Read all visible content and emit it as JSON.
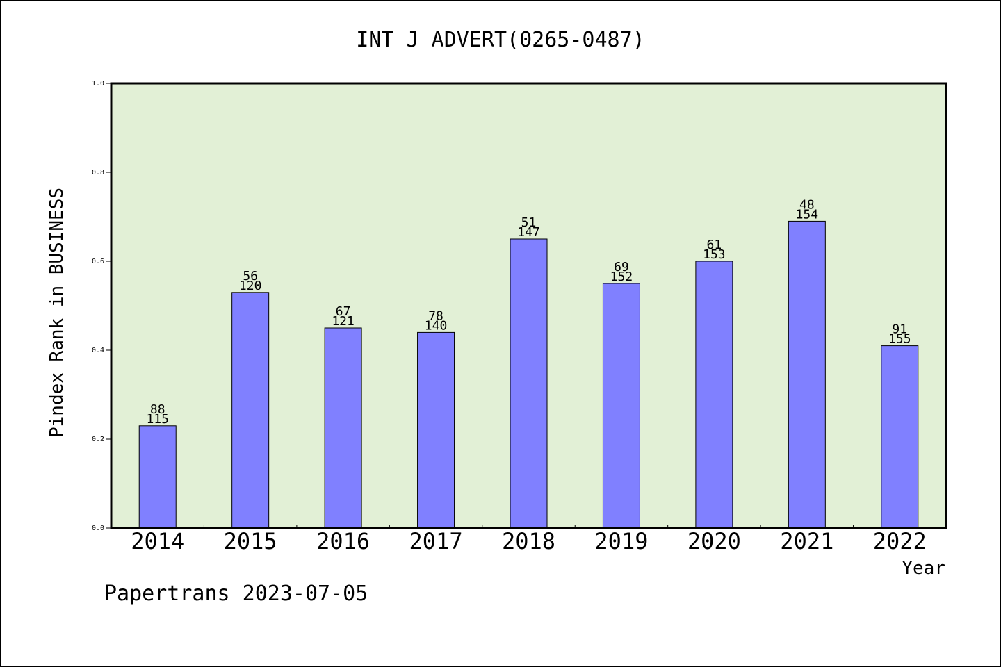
{
  "chart_data": {
    "type": "bar",
    "title": "INT J ADVERT(0265-0487)",
    "xlabel": "Year",
    "ylabel": "Pindex Rank in BUSINESS",
    "footer": "Papertrans 2023-07-05",
    "categories": [
      "2014",
      "2015",
      "2016",
      "2017",
      "2018",
      "2019",
      "2020",
      "2021",
      "2022"
    ],
    "values": [
      0.23,
      0.53,
      0.45,
      0.44,
      0.65,
      0.55,
      0.6,
      0.69,
      0.41
    ],
    "labels_top": [
      "88",
      "56",
      "67",
      "78",
      "51",
      "69",
      "61",
      "48",
      "91"
    ],
    "labels_bottom": [
      "115",
      "120",
      "121",
      "140",
      "147",
      "152",
      "153",
      "154",
      "155"
    ],
    "ylim": [
      0,
      1.0
    ],
    "yticks": [
      "0.0",
      "0.2",
      "0.4",
      "0.6",
      "0.8",
      "1.0"
    ],
    "grid": false,
    "colors": {
      "plot_background": "#e2f0d6",
      "bar_fill": "#8080ff",
      "bar_stroke": "#000000"
    }
  }
}
